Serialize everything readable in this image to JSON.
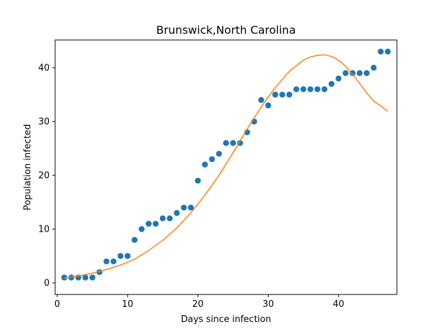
{
  "chart_data": {
    "type": "scatter",
    "title": "Brunswick,North Carolina",
    "xlabel": "Days since infection",
    "ylabel": "Population infected",
    "xlim": [
      -0.3,
      48.3
    ],
    "ylim": [
      -2.15,
      45.15
    ],
    "xticks": [
      0,
      10,
      20,
      30,
      40
    ],
    "yticks": [
      0,
      10,
      20,
      30,
      40
    ],
    "grid": false,
    "series": [
      {
        "kind": "scatter",
        "color": "#1f77b4",
        "x": [
          1,
          2,
          3,
          4,
          5,
          6,
          7,
          8,
          9,
          10,
          11,
          12,
          13,
          14,
          15,
          16,
          17,
          18,
          19,
          20,
          21,
          22,
          23,
          24,
          25,
          26,
          27,
          28,
          29,
          30,
          31,
          32,
          33,
          34,
          35,
          36,
          37,
          38,
          39,
          40,
          41,
          42,
          43,
          44,
          45,
          46,
          47
        ],
        "y": [
          1,
          1,
          1,
          1,
          1,
          2,
          4,
          4,
          5,
          5,
          8,
          10,
          11,
          11,
          12,
          12,
          13,
          14,
          14,
          19,
          22,
          23,
          24,
          26,
          26,
          26,
          28,
          30,
          34,
          33,
          35,
          35,
          35,
          36,
          36,
          36,
          36,
          36,
          37,
          38,
          39,
          39,
          39,
          39,
          40,
          43,
          43
        ]
      },
      {
        "kind": "line",
        "color": "#ff7f0e",
        "x": [
          1,
          3,
          5,
          7,
          9,
          11,
          13,
          15,
          17,
          19,
          21,
          23,
          25,
          27,
          29,
          31,
          33,
          35,
          36,
          37,
          38,
          39,
          40,
          41,
          42,
          43,
          44,
          45,
          46,
          47
        ],
        "y": [
          0.9,
          1.3,
          1.8,
          2.5,
          3.3,
          4.4,
          6.0,
          7.9,
          10.2,
          13.0,
          16.3,
          20.0,
          24.2,
          28.6,
          32.7,
          36.3,
          39.3,
          41.4,
          42.0,
          42.3,
          42.4,
          42.1,
          41.4,
          40.3,
          38.7,
          37.1,
          35.3,
          33.8,
          32.9,
          31.9
        ]
      }
    ]
  }
}
